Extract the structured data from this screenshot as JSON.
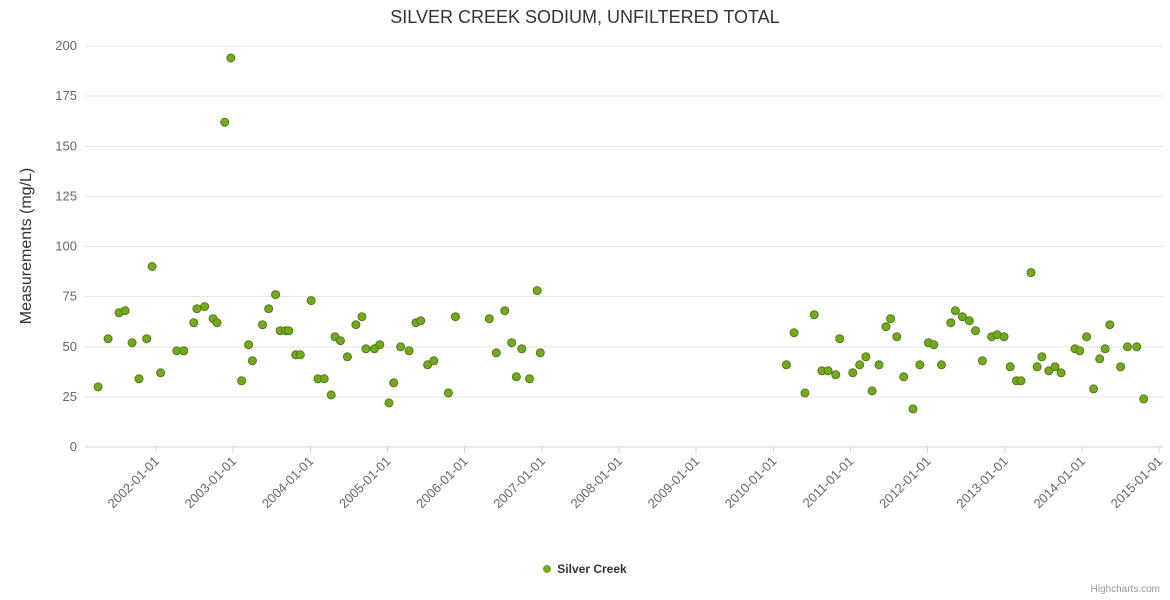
{
  "credits": "Highcharts.com",
  "chart_data": {
    "type": "scatter",
    "title": "SILVER CREEK SODIUM, UNFILTERED TOTAL",
    "xlabel": "",
    "ylabel": "Measurements (mg/L)",
    "ylim": [
      0,
      200
    ],
    "xlim": [
      2001.08,
      2015.05
    ],
    "y_ticks": [
      0,
      25,
      50,
      75,
      100,
      125,
      150,
      175,
      200
    ],
    "x_ticks": {
      "values": [
        2002,
        2003,
        2004,
        2005,
        2006,
        2007,
        2008,
        2009,
        2010,
        2011,
        2012,
        2013,
        2014,
        2015
      ],
      "labels": [
        "2002-01-01",
        "2003-01-01",
        "2004-01-01",
        "2005-01-01",
        "2006-01-01",
        "2007-01-01",
        "2008-01-01",
        "2009-01-01",
        "2010-01-01",
        "2011-01-01",
        "2012-01-01",
        "2013-01-01",
        "2014-01-01",
        "2015-01-01"
      ]
    },
    "grid": "horizontal",
    "legend_position": "bottom-center",
    "series": [
      {
        "name": "Silver Creek",
        "color": "#74aa20",
        "stroke": "#547a14",
        "points": [
          [
            2001.25,
            30
          ],
          [
            2001.38,
            54
          ],
          [
            2001.52,
            67
          ],
          [
            2001.6,
            68
          ],
          [
            2001.69,
            52
          ],
          [
            2001.78,
            34
          ],
          [
            2001.88,
            54
          ],
          [
            2001.95,
            90
          ],
          [
            2002.06,
            37
          ],
          [
            2002.27,
            48
          ],
          [
            2002.36,
            48
          ],
          [
            2002.49,
            62
          ],
          [
            2002.53,
            69
          ],
          [
            2002.63,
            70
          ],
          [
            2002.74,
            64
          ],
          [
            2002.79,
            62
          ],
          [
            2002.89,
            162
          ],
          [
            2002.97,
            194
          ],
          [
            2003.11,
            33
          ],
          [
            2003.2,
            51
          ],
          [
            2003.25,
            43
          ],
          [
            2003.38,
            61
          ],
          [
            2003.46,
            69
          ],
          [
            2003.55,
            76
          ],
          [
            2003.61,
            58
          ],
          [
            2003.68,
            58
          ],
          [
            2003.72,
            58
          ],
          [
            2003.81,
            46
          ],
          [
            2003.87,
            46
          ],
          [
            2004.01,
            73
          ],
          [
            2004.1,
            34
          ],
          [
            2004.18,
            34
          ],
          [
            2004.27,
            26
          ],
          [
            2004.32,
            55
          ],
          [
            2004.39,
            53
          ],
          [
            2004.48,
            45
          ],
          [
            2004.59,
            61
          ],
          [
            2004.67,
            65
          ],
          [
            2004.72,
            49
          ],
          [
            2004.83,
            49
          ],
          [
            2004.9,
            51
          ],
          [
            2005.02,
            22
          ],
          [
            2005.08,
            32
          ],
          [
            2005.17,
            50
          ],
          [
            2005.28,
            48
          ],
          [
            2005.37,
            62
          ],
          [
            2005.43,
            63
          ],
          [
            2005.52,
            41
          ],
          [
            2005.6,
            43
          ],
          [
            2005.79,
            27
          ],
          [
            2005.88,
            65
          ],
          [
            2006.32,
            64
          ],
          [
            2006.41,
            47
          ],
          [
            2006.52,
            68
          ],
          [
            2006.61,
            52
          ],
          [
            2006.67,
            35
          ],
          [
            2006.74,
            49
          ],
          [
            2006.84,
            34
          ],
          [
            2006.94,
            78
          ],
          [
            2006.98,
            47
          ],
          [
            2010.17,
            41
          ],
          [
            2010.27,
            57
          ],
          [
            2010.41,
            27
          ],
          [
            2010.53,
            66
          ],
          [
            2010.63,
            38
          ],
          [
            2010.71,
            38
          ],
          [
            2010.81,
            36
          ],
          [
            2010.86,
            54
          ],
          [
            2011.03,
            37
          ],
          [
            2011.12,
            41
          ],
          [
            2011.2,
            45
          ],
          [
            2011.28,
            28
          ],
          [
            2011.37,
            41
          ],
          [
            2011.46,
            60
          ],
          [
            2011.52,
            64
          ],
          [
            2011.6,
            55
          ],
          [
            2011.69,
            35
          ],
          [
            2011.81,
            19
          ],
          [
            2011.9,
            41
          ],
          [
            2012.01,
            52
          ],
          [
            2012.08,
            51
          ],
          [
            2012.18,
            41
          ],
          [
            2012.3,
            62
          ],
          [
            2012.36,
            68
          ],
          [
            2012.45,
            65
          ],
          [
            2012.54,
            63
          ],
          [
            2012.62,
            58
          ],
          [
            2012.71,
            43
          ],
          [
            2012.83,
            55
          ],
          [
            2012.9,
            56
          ],
          [
            2012.99,
            55
          ],
          [
            2013.07,
            40
          ],
          [
            2013.15,
            33
          ],
          [
            2013.21,
            33
          ],
          [
            2013.34,
            87
          ],
          [
            2013.42,
            40
          ],
          [
            2013.48,
            45
          ],
          [
            2013.57,
            38
          ],
          [
            2013.65,
            40
          ],
          [
            2013.73,
            37
          ],
          [
            2013.91,
            49
          ],
          [
            2013.97,
            48
          ],
          [
            2014.06,
            55
          ],
          [
            2014.15,
            29
          ],
          [
            2014.23,
            44
          ],
          [
            2014.3,
            49
          ],
          [
            2014.36,
            61
          ],
          [
            2014.5,
            40
          ],
          [
            2014.59,
            50
          ],
          [
            2014.71,
            50
          ],
          [
            2014.8,
            24
          ]
        ]
      }
    ]
  }
}
